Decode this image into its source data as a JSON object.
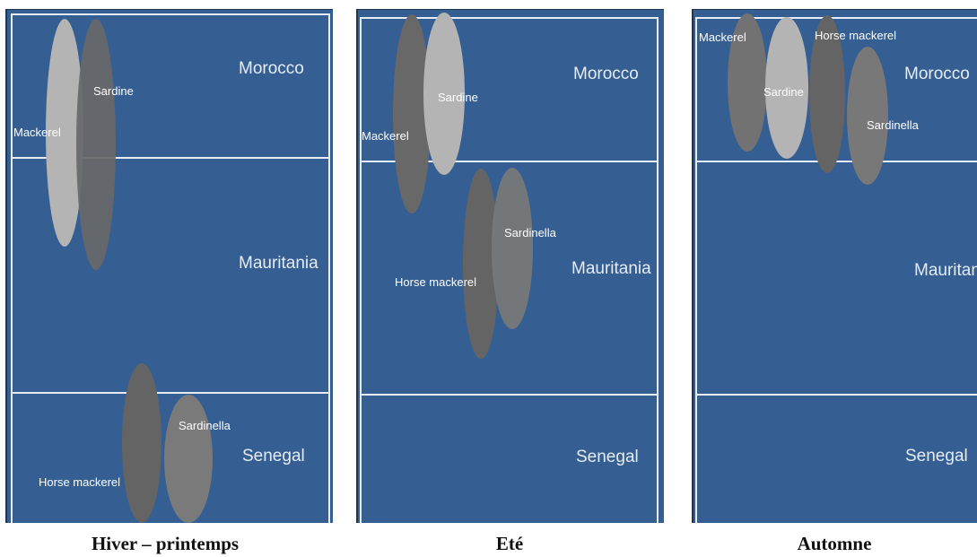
{
  "colors": {
    "background": "#355f93",
    "zone_border": "#e8edf5",
    "text": "#e6ecf4",
    "species_light": "#b4b4b4",
    "species_dark": "#646464",
    "species_mid": "#787878"
  },
  "panels": [
    {
      "caption": "Hiver  – printemps",
      "countries": {
        "morocco": "Morocco",
        "mauritania": "Mauritania",
        "senegal": "Senegal"
      },
      "species": {
        "mackerel": "Mackerel",
        "sardine": "Sardine",
        "sardinella": "Sardinella",
        "horse_mackerel": "Horse mackerel"
      }
    },
    {
      "caption": "Eté",
      "countries": {
        "morocco": "Morocco",
        "mauritania": "Mauritania",
        "senegal": "Senegal"
      },
      "species": {
        "mackerel": "Mackerel",
        "sardine": "Sardine",
        "sardinella": "Sardinella",
        "horse_mackerel": "Horse mackerel"
      }
    },
    {
      "caption": "Automne",
      "countries": {
        "morocco": "Morocco",
        "mauritania": "Mauritania",
        "senegal": "Senegal"
      },
      "species": {
        "mackerel": "Mackerel",
        "sardine": "Sardine",
        "sardinella": "Sardinella",
        "horse_mackerel": "Horse mackerel"
      }
    }
  ]
}
